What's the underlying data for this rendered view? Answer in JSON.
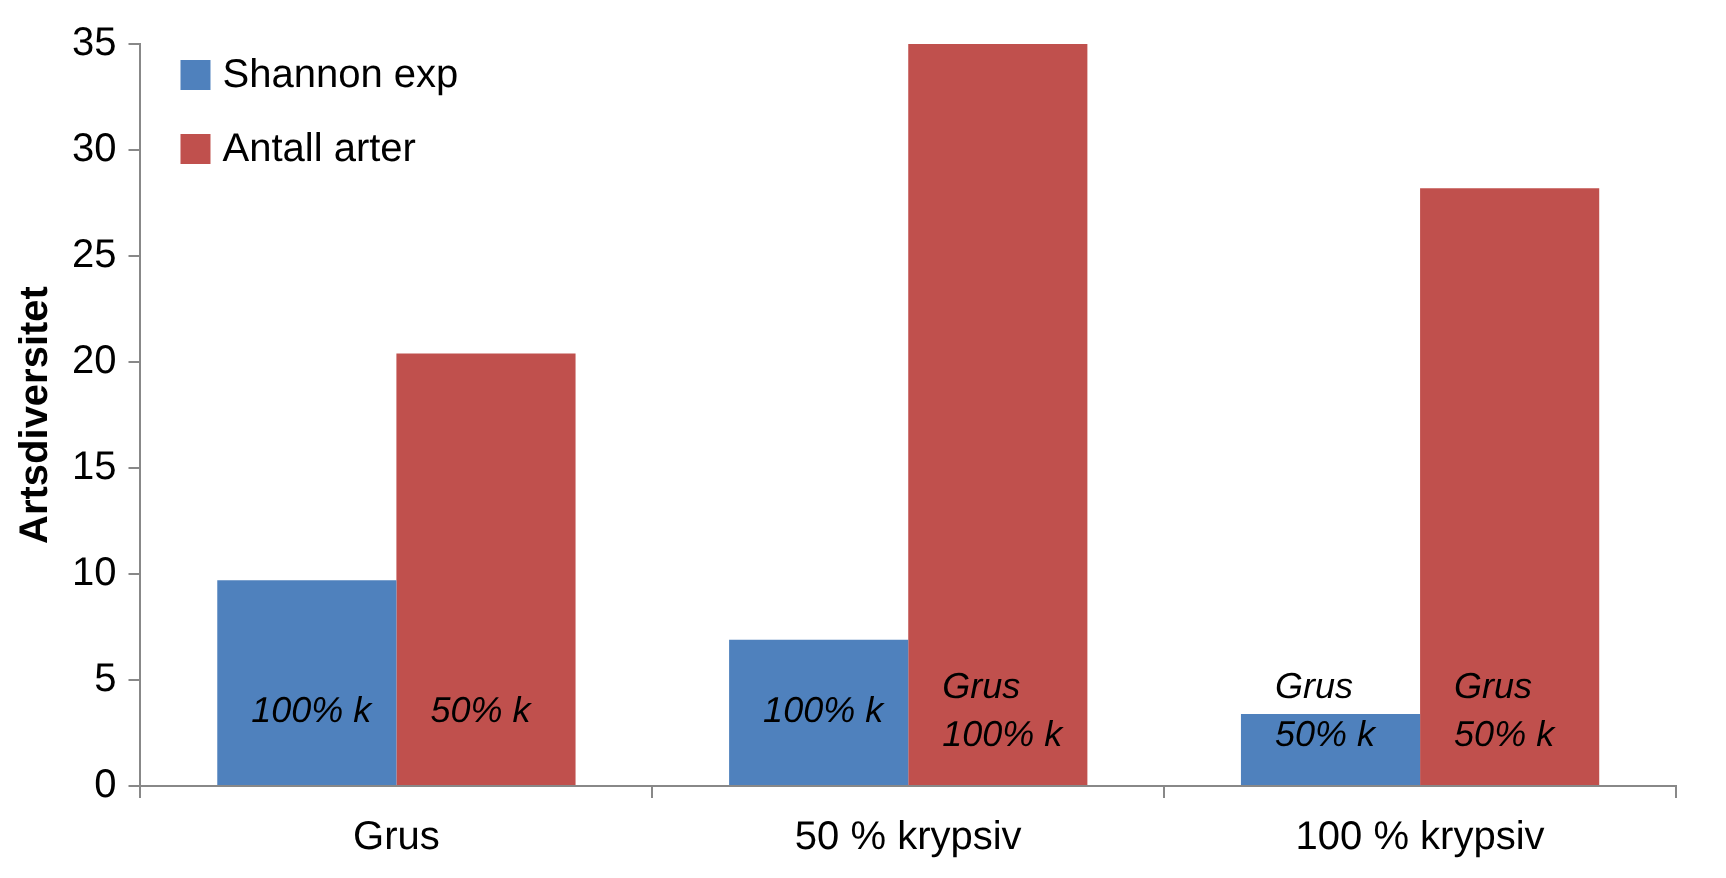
{
  "chart_data": {
    "type": "bar",
    "ylabel": "Artsdiversitet",
    "categories": [
      "Grus",
      "50 % krypsiv",
      "100 % krypsiv"
    ],
    "series": [
      {
        "name": "Shannon exp",
        "color": "#4f81bd",
        "values": [
          9.7,
          6.9,
          3.4
        ]
      },
      {
        "name": "Antall arter",
        "color": "#c0504d",
        "values": [
          20.4,
          35.0,
          28.2
        ]
      }
    ],
    "annotations": [
      {
        "text": "100% k",
        "x": "Grus",
        "y": 3.5
      },
      {
        "text": "50% k",
        "x": "Grus",
        "y": 3.5
      },
      {
        "text": "100% k",
        "x": "50 % krypsiv",
        "y": 3.5
      },
      {
        "text": "Grus\n100% k",
        "x": "50 % krypsiv",
        "y": 3.5
      },
      {
        "text": "Grus\n50% k",
        "x": "100 % krypsiv",
        "y": 3.5
      },
      {
        "text": "Grus\n50% k",
        "x": "100 % krypsiv",
        "y": 3.5
      }
    ],
    "ylim": [
      0,
      35
    ],
    "yticks": [
      0,
      5,
      10,
      15,
      20,
      25,
      30,
      35
    ],
    "grid": false,
    "legend": "top left"
  }
}
